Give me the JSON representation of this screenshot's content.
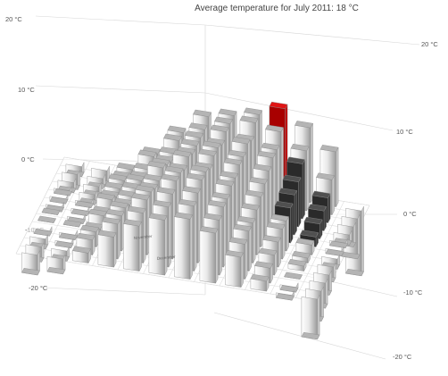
{
  "chart_data": {
    "type": "bar",
    "title": "Average temperature for July 2011: 18 °C",
    "highlight_color": "#e01414",
    "bar_color": "#b4b4b4",
    "dark_bar_color": "#505050",
    "left_axis_ticks": [
      "20 °C",
      "10 °C",
      "0 °C",
      "-10 °C",
      "-20 °C"
    ],
    "right_axis_ticks": [
      "20 °C",
      "10 °C",
      "0 °C",
      "-10 °C",
      "-20 °C"
    ],
    "month_labels": [
      "November",
      "December"
    ],
    "ylim": [
      -20,
      20
    ],
    "years": 12,
    "months": 12,
    "highlight": {
      "row": 0,
      "col": 8,
      "value": 18
    },
    "values": [
      [
        -2,
        -3,
        1,
        5,
        10,
        14,
        15,
        16,
        18,
        15,
        11,
        -13
      ],
      [
        -3,
        -2,
        1,
        6,
        10,
        13,
        15,
        16,
        15,
        12,
        7,
        -8
      ],
      [
        -2,
        -2,
        2,
        5,
        9,
        13,
        15,
        14,
        13,
        11,
        5,
        -4
      ],
      [
        -1,
        -2,
        2,
        5,
        9,
        13,
        14,
        15,
        13,
        9,
        4,
        -2
      ],
      [
        -1,
        -1,
        2,
        6,
        10,
        13,
        15,
        14,
        12,
        8,
        3,
        -1
      ],
      [
        -1,
        -1,
        3,
        6,
        11,
        14,
        15,
        14,
        11,
        7,
        2,
        -1
      ],
      [
        0,
        -1,
        2,
        6,
        10,
        13,
        14,
        13,
        10,
        6,
        2,
        -2
      ],
      [
        0,
        0,
        3,
        6,
        10,
        14,
        15,
        13,
        9,
        6,
        1,
        -3
      ],
      [
        -1,
        -1,
        2,
        7,
        11,
        14,
        15,
        12,
        8,
        5,
        1,
        -4
      ],
      [
        -2,
        -1,
        3,
        7,
        11,
        13,
        14,
        12,
        8,
        4,
        0,
        -5
      ],
      [
        -3,
        -2,
        3,
        7,
        10,
        12,
        13,
        11,
        7,
        3,
        -1,
        -6
      ],
      [
        -4,
        -3,
        2,
        6,
        9,
        11,
        12,
        10,
        6,
        2,
        -1,
        -8
      ]
    ]
  }
}
